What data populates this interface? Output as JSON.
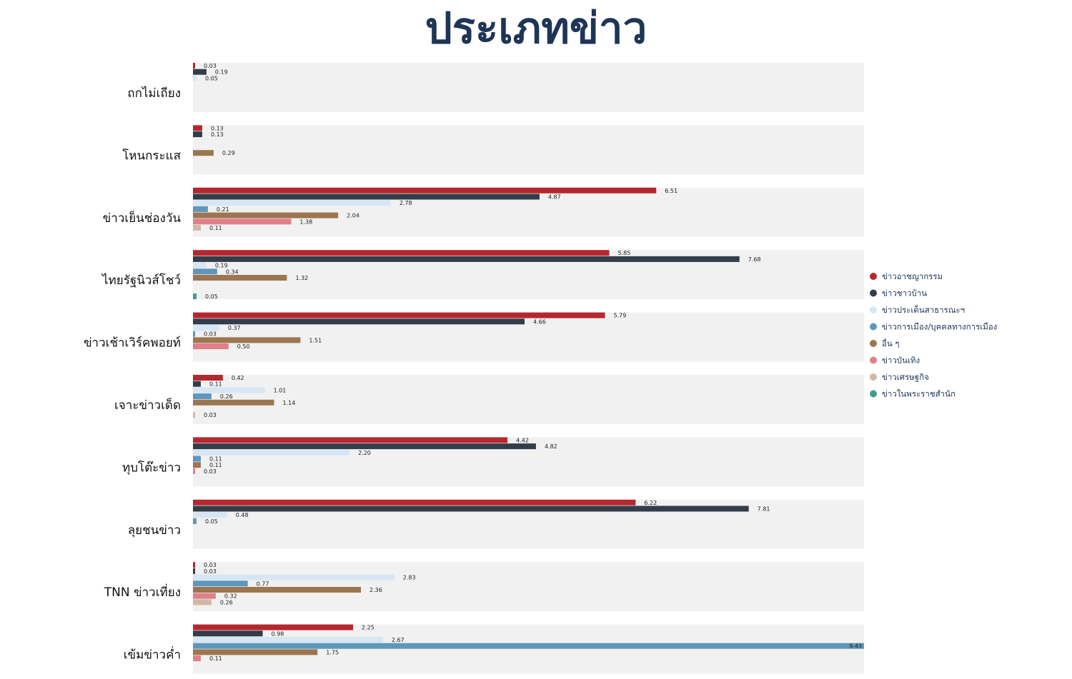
{
  "chart_data": {
    "type": "bar",
    "orientation": "horizontal",
    "title": "ประเภทข่าว",
    "xlim": [
      0,
      9.43
    ],
    "grid": false,
    "legend_position": "right",
    "series": [
      {
        "name": "ข่าวอาชญากรรม",
        "color": "#b5282e"
      },
      {
        "name": "ข่าวชาวบ้าน",
        "color": "#333d4a"
      },
      {
        "name": "ข่าวประเด็นสาธารณะฯ",
        "color": "#d7e6f4"
      },
      {
        "name": "ข่าวการเมือง/บุคคลทางการเมือง",
        "color": "#5e97b9"
      },
      {
        "name": "อื่น ๆ",
        "color": "#9c7650"
      },
      {
        "name": "ข่าวบันเทิง",
        "color": "#df7f88"
      },
      {
        "name": "ข่าวเศรษฐกิจ",
        "color": "#d1b8a6"
      },
      {
        "name": "ข่าวในพระราชสำนัก",
        "color": "#3f9b96"
      }
    ],
    "categories": [
      {
        "label": "ถกไม่เถียง",
        "values": [
          0.03,
          0.19,
          0.05,
          null,
          null,
          null,
          null,
          null
        ],
        "value_labels": [
          "0.03",
          "0.19",
          "0.05",
          null,
          null,
          null,
          null,
          null
        ]
      },
      {
        "label": "โหนกระแส",
        "values": [
          0.13,
          0.13,
          null,
          null,
          0.29,
          null,
          null,
          null
        ],
        "value_labels": [
          "0.13",
          "0.13",
          null,
          null,
          "0.29",
          null,
          null,
          null
        ]
      },
      {
        "label": "ข่าวเย็นช่องวัน",
        "values": [
          6.51,
          4.87,
          2.78,
          0.21,
          2.04,
          1.38,
          0.11,
          null
        ],
        "value_labels": [
          "6.51",
          "4.87",
          "2.78",
          "0.21",
          "2.04",
          "1.38",
          "0.11",
          null
        ]
      },
      {
        "label": "ไทยรัฐนิวส์โชว์",
        "values": [
          5.85,
          7.68,
          0.19,
          0.34,
          1.32,
          null,
          null,
          0.05
        ],
        "value_labels": [
          "5.85",
          "7.68",
          "0.19",
          "0.34",
          "1.32",
          null,
          null,
          "0.05"
        ]
      },
      {
        "label": "ข่าวเช้าเวิร์คพอยท์",
        "values": [
          5.79,
          4.66,
          0.37,
          0.03,
          1.51,
          0.5,
          null,
          null
        ],
        "value_labels": [
          "5.79",
          "4.66",
          "0.37",
          "0.03",
          "1.51",
          "0.50",
          null,
          null
        ]
      },
      {
        "label": "เจาะข่าวเด็ด",
        "values": [
          0.42,
          0.11,
          1.01,
          0.26,
          1.14,
          null,
          0.03,
          null
        ],
        "value_labels": [
          "0.42",
          "0.11",
          "1.01",
          "0.26",
          "1.14",
          null,
          "0.03",
          null
        ]
      },
      {
        "label": "ทุบโต๊ะข่าว",
        "values": [
          4.42,
          4.82,
          2.2,
          0.11,
          0.11,
          0.03,
          null,
          null
        ],
        "value_labels": [
          "4.42",
          "4.82",
          "2.20",
          "0.11",
          "0.11",
          "0.03",
          null,
          null
        ]
      },
      {
        "label": "ลุยชนข่าว",
        "values": [
          6.22,
          7.81,
          0.48,
          0.05,
          null,
          null,
          null,
          null
        ],
        "value_labels": [
          "6.22",
          "7.81",
          "0.48",
          "0.05",
          null,
          null,
          null,
          null
        ]
      },
      {
        "label": "TNN ข่าวเที่ยง",
        "values": [
          0.03,
          0.03,
          2.83,
          0.77,
          2.36,
          0.32,
          0.26,
          null
        ],
        "value_labels": [
          "0.03",
          "0.03",
          "2.83",
          "0.77",
          "2.36",
          "0.32",
          "0.26",
          null
        ]
      },
      {
        "label": "เข้มข่าวค่ำ",
        "values": [
          2.25,
          0.98,
          2.67,
          9.43,
          1.75,
          0.11,
          null,
          null
        ],
        "value_labels": [
          "2.25",
          "0.98",
          "2.67",
          "9.43",
          "1.75",
          "0.11",
          null,
          null
        ]
      }
    ]
  },
  "colors": {
    "title": "#1d3557",
    "panel_background": "#f0f1f0"
  }
}
